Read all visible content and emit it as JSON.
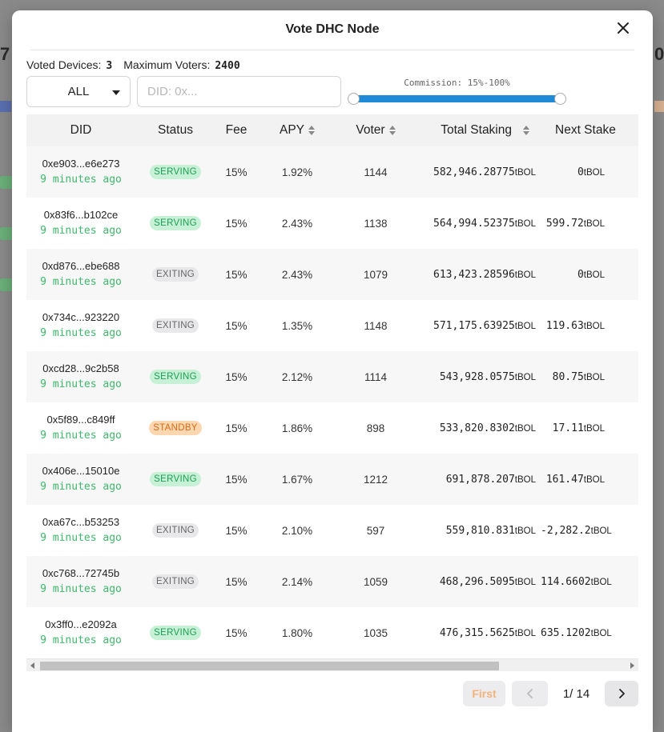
{
  "modal": {
    "title": "Vote DHC Node"
  },
  "stats": {
    "voted_devices_label": "Voted Devices:",
    "voted_devices_value": "3",
    "max_voters_label": "Maximum Voters:",
    "max_voters_value": "2400"
  },
  "filters": {
    "status_selected": "ALL",
    "did_placeholder": "DID: 0x...",
    "commission_label": "Commission: 15%-100%",
    "commission_min": 15,
    "commission_max": 100
  },
  "table": {
    "headers": {
      "did": "DID",
      "status": "Status",
      "fee": "Fee",
      "apy": "APY",
      "voter": "Voter",
      "total_staking": "Total Staking",
      "next_staking": "Next Stake"
    },
    "unit": "tBOL",
    "rows": [
      {
        "did": "0xe903...e6e273",
        "ago": "9 minutes ago",
        "status": "SERVING",
        "status_class": "serving",
        "fee": "15%",
        "apy": "1.92%",
        "voter": "1144",
        "total": "582,946.28775",
        "next": "0"
      },
      {
        "did": "0x83f6...b102ce",
        "ago": "9 minutes ago",
        "status": "SERVING",
        "status_class": "serving",
        "fee": "15%",
        "apy": "2.43%",
        "voter": "1138",
        "total": "564,994.52375",
        "next": "599.72"
      },
      {
        "did": "0xd876...ebe688",
        "ago": "9 minutes ago",
        "status": "EXITING",
        "status_class": "exiting",
        "fee": "15%",
        "apy": "2.43%",
        "voter": "1079",
        "total": "613,423.28596",
        "next": "0"
      },
      {
        "did": "0x734c...923220",
        "ago": "9 minutes ago",
        "status": "EXITING",
        "status_class": "exiting",
        "fee": "15%",
        "apy": "1.35%",
        "voter": "1148",
        "total": "571,175.63925",
        "next": "119.63"
      },
      {
        "did": "0xcd28...9c2b58",
        "ago": "9 minutes ago",
        "status": "SERVING",
        "status_class": "serving",
        "fee": "15%",
        "apy": "2.12%",
        "voter": "1114",
        "total": "543,928.0575",
        "next": "80.75"
      },
      {
        "did": "0x5f89...c849ff",
        "ago": "9 minutes ago",
        "status": "STANDBY",
        "status_class": "standby",
        "fee": "15%",
        "apy": "1.86%",
        "voter": "898",
        "total": "533,820.8302",
        "next": "17.11"
      },
      {
        "did": "0x406e...15010e",
        "ago": "9 minutes ago",
        "status": "SERVING",
        "status_class": "serving",
        "fee": "15%",
        "apy": "1.67%",
        "voter": "1212",
        "total": "691,878.207",
        "next": "161.47"
      },
      {
        "did": "0xa67c...b53253",
        "ago": "9 minutes ago",
        "status": "EXITING",
        "status_class": "exiting",
        "fee": "15%",
        "apy": "2.10%",
        "voter": "597",
        "total": "559,810.831",
        "next": "-2,282.2"
      },
      {
        "did": "0xc768...72745b",
        "ago": "9 minutes ago",
        "status": "EXITING",
        "status_class": "exiting",
        "fee": "15%",
        "apy": "2.14%",
        "voter": "1059",
        "total": "468,296.5095",
        "next": "114.6602"
      },
      {
        "did": "0x3ff0...e2092a",
        "ago": "9 minutes ago",
        "status": "SERVING",
        "status_class": "serving",
        "fee": "15%",
        "apy": "1.80%",
        "voter": "1035",
        "total": "476,315.5625",
        "next": "635.1202"
      }
    ]
  },
  "pagination": {
    "first_label": "First",
    "page_info": "1/ 14"
  },
  "colors": {
    "accent": "#1e8ad8",
    "serving": "#1d9e55",
    "standby": "#d96b16",
    "time_ago": "#3fb86b"
  },
  "icons": {
    "close": "close-icon",
    "prev": "chevron-left-icon",
    "next": "chevron-right-icon",
    "sort": "sort-icon",
    "dropdown": "caret-down-icon"
  }
}
